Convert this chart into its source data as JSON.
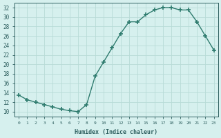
{
  "x": [
    0,
    1,
    2,
    3,
    4,
    5,
    6,
    7,
    8,
    9,
    10,
    11,
    12,
    13,
    14,
    15,
    16,
    17,
    18,
    19,
    20,
    21,
    22,
    23
  ],
  "y": [
    13.5,
    12.5,
    12.0,
    11.5,
    11.0,
    10.5,
    10.2,
    10.0,
    11.5,
    17.5,
    20.5,
    23.5,
    26.5,
    29.0,
    29.0,
    30.5,
    31.5,
    32.0,
    32.0,
    31.5,
    31.5,
    29.0,
    26.0,
    23.0
  ],
  "xlim": [
    -0.5,
    23.5
  ],
  "ylim": [
    9,
    33
  ],
  "yticks": [
    10,
    12,
    14,
    16,
    18,
    20,
    22,
    24,
    26,
    28,
    30,
    32
  ],
  "xticks": [
    0,
    1,
    2,
    3,
    4,
    5,
    6,
    7,
    8,
    9,
    10,
    11,
    12,
    13,
    14,
    15,
    16,
    17,
    18,
    19,
    20,
    21,
    22,
    23
  ],
  "xlabel": "Humidex (Indice chaleur)",
  "line_color": "#2e7b6e",
  "marker": "+",
  "marker_size": 4,
  "marker_lw": 1.2,
  "bg_color": "#d6f0ee",
  "grid_color": "#b8dbd7",
  "tick_color": "#2e5f5f",
  "label_color": "#2e5f5f",
  "figsize": [
    3.2,
    2.0
  ],
  "dpi": 100
}
